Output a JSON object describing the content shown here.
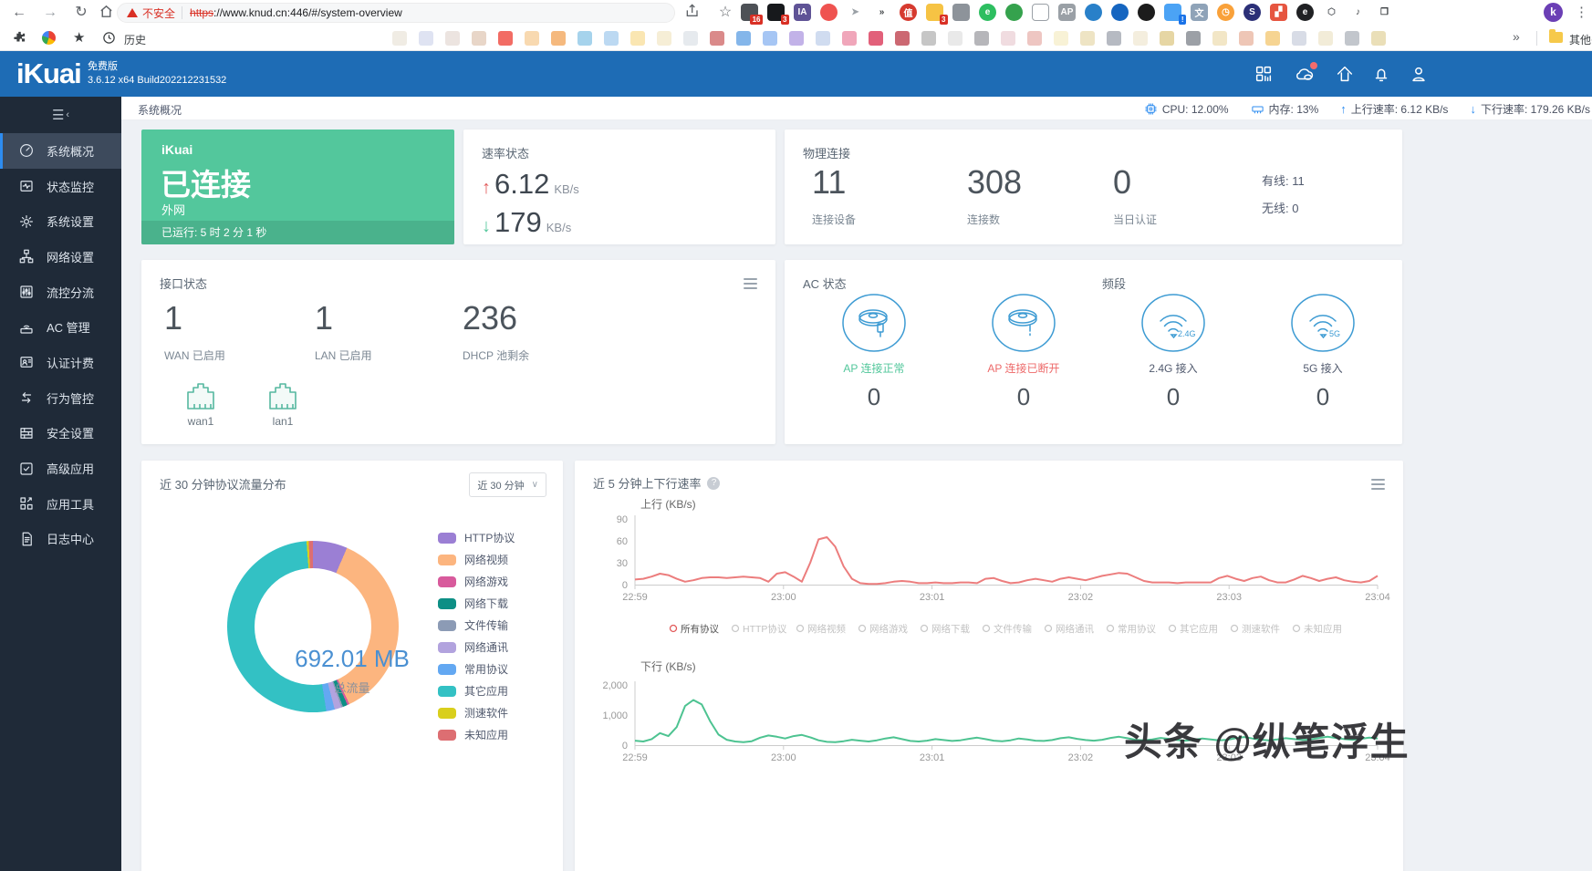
{
  "browser": {
    "url": {
      "insecure_label": "不安全",
      "scheme": "https",
      "rest": "://www.knud.cn:446/#/system-overview"
    },
    "history_label": "历史",
    "other_bookmarks_label": "其他书签",
    "profile_initial": "k",
    "extensions": [
      {
        "name": "extension-grid-icon",
        "color": "#4d5156",
        "glyph": "",
        "badge": "16"
      },
      {
        "name": "extension-dark-icon",
        "color": "#17191c",
        "glyph": "",
        "badge": "3"
      },
      {
        "name": "ia-icon",
        "color": "#5f5396",
        "glyph": "IA"
      },
      {
        "name": "egg-icon",
        "color": "#ef5350",
        "glyph": "",
        "round": true
      },
      {
        "name": "cursor-icon",
        "color": "transparent",
        "glyph": "➤",
        "fg": "#9aa0a6"
      },
      {
        "name": "double-cursor-icon",
        "color": "transparent",
        "glyph": "»",
        "fg": "#3c4043"
      },
      {
        "name": "zhi-icon",
        "color": "#d63a2f",
        "glyph": "值",
        "round": true
      },
      {
        "name": "notes-icon",
        "color": "#f6c344",
        "glyph": "",
        "badge": "3"
      },
      {
        "name": "shield-gray-icon",
        "color": "#8d939a",
        "glyph": ""
      },
      {
        "name": "evernote-icon",
        "color": "#2dbe60",
        "glyph": "e",
        "round": true
      },
      {
        "name": "idm-globe-icon",
        "color": "#35a24d",
        "glyph": "",
        "round": true
      },
      {
        "name": "shield-outline-icon",
        "color": "transparent",
        "glyph": "",
        "fg": "#9aa0a6",
        "outline": true
      },
      {
        "name": "ap-icon",
        "color": "#9aa0a6",
        "glyph": "AP"
      },
      {
        "name": "thunderbird-icon",
        "color": "#2980c9",
        "glyph": "",
        "round": true
      },
      {
        "name": "blue-globe-icon",
        "color": "#1565c0",
        "glyph": "",
        "round": true
      },
      {
        "name": "afro-icon",
        "color": "#1c1c1c",
        "glyph": "",
        "round": true
      },
      {
        "name": "bird-alert-icon",
        "color": "#4ba3f5",
        "glyph": "",
        "badge": "!",
        "badge_color": "#1a73e8"
      },
      {
        "name": "translate-icon",
        "color": "#8fa3b8",
        "glyph": "文"
      },
      {
        "name": "clock-ext-icon",
        "color": "#f9a13a",
        "glyph": "◷",
        "round": true
      },
      {
        "name": "s-swirl-icon",
        "color": "#2b2f77",
        "glyph": "S",
        "round": true
      },
      {
        "name": "image-ext-icon",
        "color": "#e65540",
        "glyph": "▞"
      },
      {
        "name": "e-circle-icon",
        "color": "#202124",
        "glyph": "e",
        "round": true
      },
      {
        "name": "puzzle-menu-icon",
        "color": "transparent",
        "glyph": "⬡",
        "fg": "#5f6368"
      },
      {
        "name": "playlist-icon",
        "color": "transparent",
        "glyph": "♪",
        "fg": "#3c4043"
      },
      {
        "name": "window-icon",
        "color": "transparent",
        "glyph": "❐",
        "fg": "#3c4043"
      }
    ],
    "favicon_colors": [
      "#f0ece4",
      "#dfe3f2",
      "#ece4e0",
      "#e8d6c8",
      "#f26c64",
      "#f8d9b0",
      "#f5b97e",
      "#a6d3ec",
      "#bcd9f2",
      "#fae6b2",
      "#f6eed6",
      "#e6eaee",
      "#da8a8a",
      "#84b6ea",
      "#a6c6f4",
      "#c2b2e8",
      "#d0dcf0",
      "#f0a6ba",
      "#e2607a",
      "#cc6872",
      "#c6c6c6",
      "#e9e9e9",
      "#b6b6ba",
      "#f0dce0",
      "#eec6c2",
      "#f8f2d6",
      "#eee4c4",
      "#b6bac2",
      "#f4eede",
      "#e6d6a4",
      "#9ca0a6",
      "#f2e6c6",
      "#eec6b6",
      "#f6d492",
      "#d8dce6",
      "#f2ecd8",
      "#c2c6cc",
      "#eadfb8"
    ]
  },
  "header": {
    "logo": "iKuai",
    "edition": "免费版",
    "build": "3.6.12 x64 Build202212231532"
  },
  "statusbar": {
    "breadcrumb": "系统概况",
    "cpu": "CPU: 12.00%",
    "memory": "内存: 13%",
    "up": "上行速率: 6.12 KB/s",
    "down": "下行速率: 179.26 KB/s"
  },
  "sidebar": {
    "items": [
      {
        "label": "系统概况",
        "icon": "dashboard-icon",
        "active": true
      },
      {
        "label": "状态监控",
        "icon": "monitor-icon"
      },
      {
        "label": "系统设置",
        "icon": "gear-icon"
      },
      {
        "label": "网络设置",
        "icon": "network-icon"
      },
      {
        "label": "流控分流",
        "icon": "sliders-icon"
      },
      {
        "label": "AC 管理",
        "icon": "ac-icon"
      },
      {
        "label": "认证计费",
        "icon": "id-card-icon"
      },
      {
        "label": "行为管控",
        "icon": "arrows-icon"
      },
      {
        "label": "安全设置",
        "icon": "wall-icon"
      },
      {
        "label": "高级应用",
        "icon": "check-square-icon"
      },
      {
        "label": "应用工具",
        "icon": "tools-icon"
      },
      {
        "label": "日志中心",
        "icon": "logs-icon"
      }
    ]
  },
  "cards": {
    "connection": {
      "brand": "iKuai",
      "status": "已连接",
      "net": "外网",
      "uptime": "已运行: 5 时 2 分 1 秒"
    },
    "speed": {
      "title": "速率状态",
      "up_value": "6.12",
      "up_unit": "KB/s",
      "down_value": "179",
      "down_unit": "KB/s",
      "up_color": "#e25b5b",
      "down_color": "#53c79c"
    },
    "physical": {
      "title": "物理连接",
      "stats": [
        {
          "value": "11",
          "label": "连接设备"
        },
        {
          "value": "308",
          "label": "连接数"
        },
        {
          "value": "0",
          "label": "当日认证"
        }
      ],
      "wired": "有线: 11",
      "wireless": "无线: 0"
    },
    "interface": {
      "title": "接口状态",
      "stats": [
        {
          "value": "1",
          "label": "WAN 已启用"
        },
        {
          "value": "1",
          "label": "LAN 已启用"
        },
        {
          "value": "236",
          "label": "DHCP 池剩余"
        }
      ],
      "ports": [
        {
          "label": "wan1"
        },
        {
          "label": "lan1"
        }
      ]
    },
    "ac": {
      "title": "AC 状态",
      "band_title": "频段",
      "items": [
        {
          "label": "AP 连接正常",
          "value": "0",
          "label_color": "#52c79b",
          "icon": "ap-normal-icon"
        },
        {
          "label": "AP 连接已断开",
          "value": "0",
          "label_color": "#ed6a6a",
          "icon": "ap-broken-icon"
        },
        {
          "label": "2.4G 接入",
          "value": "0",
          "label_color": "#515a6e",
          "icon": "wifi-24g-icon"
        },
        {
          "label": "5G 接入",
          "value": "0",
          "label_color": "#515a6e",
          "icon": "wifi-5g-icon"
        }
      ]
    },
    "protocol": {
      "title": "近 30 分钟协议流量分布",
      "range_label": "近 30 分钟"
    },
    "rate": {
      "title": "近 5 分钟上下行速率"
    }
  },
  "rate_legend": {
    "items": [
      "所有协议",
      "HTTP协议",
      "网络视频",
      "网络游戏",
      "网络下载",
      "文件传输",
      "网络通讯",
      "常用协议",
      "其它应用",
      "测速软件",
      "未知应用"
    ],
    "active_index": 0,
    "active_color": "#e25b5b"
  },
  "watermark": {
    "text": "头条 @纵笔浮生"
  },
  "chart_data": [
    {
      "type": "pie",
      "title": "近 30 分钟协议流量分布",
      "center_value": "692.01 MB",
      "center_label": "总流量",
      "slices": [
        {
          "label": "HTTP协议",
          "percent": 6.5,
          "color": "#9b7fd4"
        },
        {
          "label": "网络视频",
          "percent": 36.5,
          "color": "#fcb57f"
        },
        {
          "label": "网络游戏",
          "percent": 0.4,
          "color": "#d85a9c"
        },
        {
          "label": "网络下载",
          "percent": 0.9,
          "color": "#0d8f85"
        },
        {
          "label": "文件传输",
          "percent": 0.3,
          "color": "#8c9bb5"
        },
        {
          "label": "网络通讯",
          "percent": 1.3,
          "color": "#b2a3de"
        },
        {
          "label": "常用协议",
          "percent": 1.6,
          "color": "#63a8f2"
        },
        {
          "label": "其它应用",
          "percent": 51.3,
          "color": "#33c1c4"
        },
        {
          "label": "测速软件",
          "percent": 0.4,
          "color": "#d9cf1c"
        },
        {
          "label": "未知应用",
          "percent": 0.8,
          "color": "#dd6e72"
        }
      ]
    },
    {
      "type": "line",
      "name": "上行",
      "axis_label": "上行 (KB/s)",
      "color": "#ec7d7d",
      "ylim": [
        0,
        90
      ],
      "y_ticks": [
        0,
        30,
        60,
        90
      ],
      "y_tick_labels": [
        "0",
        "30",
        "60",
        "90"
      ],
      "x_ticks": [
        "22:59",
        "23:00",
        "23:01",
        "23:02",
        "23:03",
        "23:04"
      ],
      "values": [
        7,
        8,
        11,
        15,
        13,
        8,
        4,
        6,
        9,
        10,
        10,
        9,
        10,
        11,
        10,
        9,
        4,
        15,
        17,
        11,
        4,
        30,
        62,
        65,
        52,
        25,
        8,
        2,
        1,
        1,
        2,
        4,
        5,
        4,
        2,
        2,
        3,
        2,
        2,
        3,
        3,
        2,
        8,
        9,
        5,
        2,
        3,
        6,
        8,
        6,
        4,
        8,
        10,
        8,
        6,
        9,
        12,
        14,
        16,
        15,
        10,
        5,
        3,
        3,
        3,
        2,
        3,
        3,
        3,
        3,
        9,
        12,
        8,
        5,
        9,
        11,
        6,
        3,
        3,
        7,
        12,
        9,
        5,
        8,
        10,
        6,
        4,
        3,
        5,
        12
      ]
    },
    {
      "type": "line",
      "name": "下行",
      "axis_label": "下行 (KB/s)",
      "color": "#4dc391",
      "ylim": [
        0,
        2000
      ],
      "y_ticks": [
        0,
        1000,
        2000
      ],
      "y_tick_labels": [
        "0",
        "1,000",
        "2,000"
      ],
      "x_ticks": [
        "22:59",
        "23:00",
        "23:01",
        "23:02",
        "23:03",
        "23:04"
      ],
      "values": [
        150,
        120,
        200,
        400,
        300,
        600,
        1300,
        1500,
        1350,
        800,
        350,
        180,
        120,
        100,
        130,
        250,
        320,
        280,
        220,
        300,
        340,
        260,
        160,
        110,
        100,
        130,
        180,
        150,
        120,
        160,
        220,
        260,
        200,
        140,
        120,
        150,
        200,
        170,
        140,
        160,
        210,
        250,
        200,
        150,
        130,
        160,
        220,
        190,
        150,
        140,
        170,
        230,
        260,
        210,
        170,
        150,
        180,
        240,
        280,
        230,
        180,
        160,
        190,
        240,
        210,
        170,
        150,
        180,
        220,
        190,
        160,
        180,
        230,
        270,
        220,
        180,
        160,
        190,
        230,
        200,
        170,
        190,
        240,
        280,
        240,
        200,
        180,
        210,
        250,
        220
      ]
    }
  ]
}
